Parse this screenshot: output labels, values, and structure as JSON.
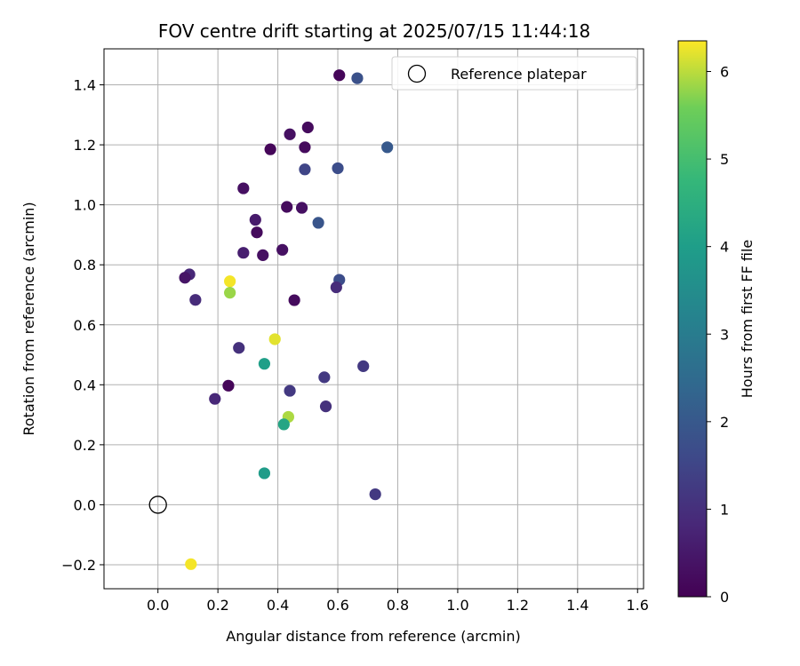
{
  "chart_data": {
    "type": "scatter",
    "title": "FOV centre drift starting at 2025/07/15 11:44:18",
    "xlabel": "Angular distance from reference (arcmin)",
    "ylabel": "Rotation from reference (arcmin)",
    "xlim": [
      -0.18,
      1.62
    ],
    "ylim": [
      -0.28,
      1.52
    ],
    "xticks": [
      0.0,
      0.2,
      0.4,
      0.6,
      0.8,
      1.0,
      1.2,
      1.4,
      1.6
    ],
    "xtick_labels": [
      "0.0",
      "0.2",
      "0.4",
      "0.6",
      "0.8",
      "1.0",
      "1.2",
      "1.4",
      "1.6"
    ],
    "yticks": [
      -0.2,
      0.0,
      0.2,
      0.4,
      0.6,
      0.8,
      1.0,
      1.2,
      1.4
    ],
    "ytick_labels": [
      "−0.2",
      "0.0",
      "0.2",
      "0.4",
      "0.6",
      "0.8",
      "1.0",
      "1.2",
      "1.4"
    ],
    "grid": true,
    "legend": {
      "placement": "top-right",
      "entries": [
        "Reference platepar"
      ]
    },
    "reference_point": {
      "x": 0.0,
      "y": 0.0
    },
    "colorbar": {
      "label": "Hours from first FF file",
      "range": [
        0,
        6.35
      ],
      "ticks": [
        0,
        1,
        2,
        3,
        4,
        5,
        6
      ],
      "tick_labels": [
        "0",
        "1",
        "2",
        "3",
        "4",
        "5",
        "6"
      ],
      "colormap": "viridis"
    },
    "points": [
      {
        "x": 0.605,
        "y": 1.432,
        "c": 0.1
      },
      {
        "x": 0.665,
        "y": 1.422,
        "c": 1.8
      },
      {
        "x": 0.5,
        "y": 1.258,
        "c": 0.2
      },
      {
        "x": 0.44,
        "y": 1.235,
        "c": 0.3
      },
      {
        "x": 0.49,
        "y": 1.192,
        "c": 0.2
      },
      {
        "x": 0.375,
        "y": 1.185,
        "c": 0.1
      },
      {
        "x": 0.765,
        "y": 1.192,
        "c": 2.0
      },
      {
        "x": 0.49,
        "y": 1.118,
        "c": 1.5
      },
      {
        "x": 0.6,
        "y": 1.122,
        "c": 1.7
      },
      {
        "x": 0.285,
        "y": 1.055,
        "c": 0.3
      },
      {
        "x": 0.43,
        "y": 0.993,
        "c": 0.2
      },
      {
        "x": 0.48,
        "y": 0.99,
        "c": 0.3
      },
      {
        "x": 0.325,
        "y": 0.95,
        "c": 0.5
      },
      {
        "x": 0.535,
        "y": 0.94,
        "c": 1.9
      },
      {
        "x": 0.33,
        "y": 0.908,
        "c": 0.2
      },
      {
        "x": 0.415,
        "y": 0.85,
        "c": 0.3
      },
      {
        "x": 0.285,
        "y": 0.84,
        "c": 0.6
      },
      {
        "x": 0.35,
        "y": 0.832,
        "c": 0.3
      },
      {
        "x": 0.105,
        "y": 0.768,
        "c": 0.8
      },
      {
        "x": 0.09,
        "y": 0.757,
        "c": 0.4
      },
      {
        "x": 0.24,
        "y": 0.745,
        "c": 6.3
      },
      {
        "x": 0.605,
        "y": 0.75,
        "c": 1.7
      },
      {
        "x": 0.595,
        "y": 0.725,
        "c": 0.9
      },
      {
        "x": 0.24,
        "y": 0.707,
        "c": 5.8
      },
      {
        "x": 0.125,
        "y": 0.683,
        "c": 0.9
      },
      {
        "x": 0.455,
        "y": 0.682,
        "c": 0.2
      },
      {
        "x": 0.39,
        "y": 0.552,
        "c": 6.2
      },
      {
        "x": 0.27,
        "y": 0.523,
        "c": 1.0
      },
      {
        "x": 0.355,
        "y": 0.47,
        "c": 4.0
      },
      {
        "x": 0.685,
        "y": 0.462,
        "c": 1.2
      },
      {
        "x": 0.555,
        "y": 0.425,
        "c": 1.2
      },
      {
        "x": 0.235,
        "y": 0.397,
        "c": 0.1
      },
      {
        "x": 0.44,
        "y": 0.38,
        "c": 1.2
      },
      {
        "x": 0.19,
        "y": 0.353,
        "c": 0.8
      },
      {
        "x": 0.56,
        "y": 0.328,
        "c": 1.0
      },
      {
        "x": 0.435,
        "y": 0.293,
        "c": 5.9
      },
      {
        "x": 0.42,
        "y": 0.268,
        "c": 4.2
      },
      {
        "x": 0.355,
        "y": 0.105,
        "c": 3.9
      },
      {
        "x": 0.725,
        "y": 0.035,
        "c": 1.2
      },
      {
        "x": 0.11,
        "y": -0.198,
        "c": 6.3
      }
    ]
  }
}
